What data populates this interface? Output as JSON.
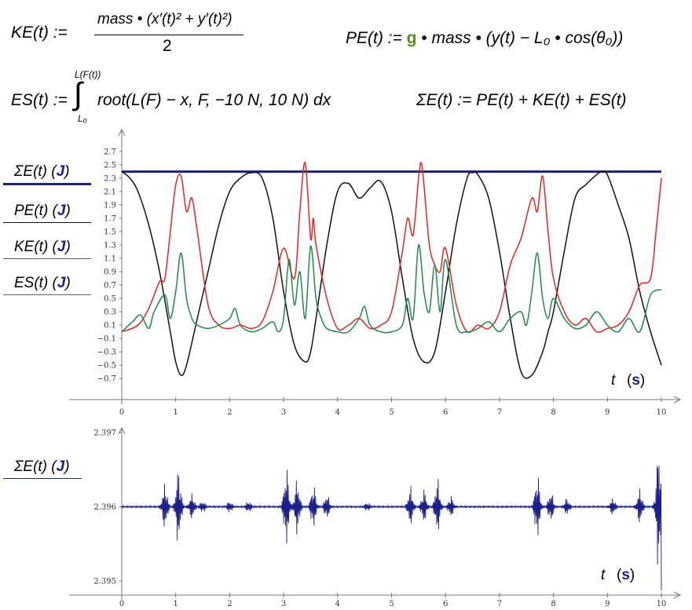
{
  "colors": {
    "total": "#1a1f8c",
    "pe": "#111111",
    "ke": "#ee2222",
    "es": "#1e8a4c",
    "g": "#5a8a1a",
    "unit": "#1a1f8c"
  },
  "equations": {
    "ke": {
      "lhs": "KE(t) :=",
      "numerator": "mass • (x′(t)² + y′(t)²)",
      "denominator": "2"
    },
    "pe": {
      "lhs": "PE(t) :=",
      "g": "g",
      "rhs": "• mass • (y(t) − L₀ • cos(θ₀))"
    },
    "es": {
      "lhs": "ES(t) :=",
      "upper": "L(F(t))",
      "lower": "L₀",
      "integrand": "root(L(F) − x, F, −10 N, 10 N) dx"
    },
    "sum": {
      "text": "ΣE(t) := PE(t) + KE(t) + ES(t)"
    }
  },
  "legend_top": [
    {
      "label": "ΣE(t)",
      "unit": "J",
      "color": "#1a1f8c"
    },
    {
      "label": "PE(t)",
      "unit": "J",
      "color": "#111111"
    },
    {
      "label": "KE(t)",
      "unit": "J",
      "color": "#ee2222"
    },
    {
      "label": "ES(t)",
      "unit": "J",
      "color": "#1e8a4c"
    }
  ],
  "legend_bottom": {
    "label": "ΣE(t)",
    "unit": "J",
    "color": "#1a1f8c"
  },
  "chart_data": [
    {
      "type": "line",
      "title": "",
      "xlabel": "t",
      "xunit": "s",
      "ylabel": "J",
      "xlim": [
        0,
        10
      ],
      "ylim": [
        -0.85,
        2.85
      ],
      "xticks": [
        0,
        1,
        2,
        3,
        4,
        5,
        6,
        7,
        8,
        9,
        10
      ],
      "yticks": [
        "2.7",
        "2.5",
        "2.3",
        "2.1",
        "1.9",
        "1.7",
        "1.5",
        "1.3",
        "1.1",
        "0.9",
        "0.7",
        "0.5",
        "0.3",
        "0.1",
        "−0.1",
        "−0.3",
        "−0.5",
        "−0.7"
      ],
      "series": [
        {
          "name": "ΣE(t) (J)",
          "color": "#1a1f8c",
          "x": [
            0,
            10
          ],
          "y": [
            2.396,
            2.396
          ]
        },
        {
          "name": "PE(t) (J)",
          "color": "#111111",
          "x": [
            0,
            0.15,
            0.3,
            0.5,
            0.7,
            0.9,
            1.0,
            1.1,
            1.2,
            1.4,
            1.6,
            1.8,
            2.0,
            2.2,
            2.4,
            2.6,
            2.8,
            3.0,
            3.2,
            3.4,
            3.5,
            3.6,
            3.8,
            4.0,
            4.2,
            4.4,
            4.6,
            4.8,
            5.0,
            5.2,
            5.4,
            5.6,
            5.8,
            6.0,
            6.2,
            6.4,
            6.5,
            6.6,
            6.8,
            7.0,
            7.2,
            7.4,
            7.6,
            7.8,
            7.9,
            8.0,
            8.2,
            8.4,
            8.6,
            8.8,
            8.9,
            9.0,
            9.2,
            9.4,
            9.6,
            9.8,
            10.0
          ],
          "y": [
            2.4,
            2.3,
            2.1,
            1.6,
            0.9,
            0.0,
            -0.45,
            -0.65,
            -0.5,
            0.2,
            0.9,
            1.6,
            2.1,
            2.3,
            2.38,
            2.3,
            1.7,
            0.6,
            -0.2,
            -0.45,
            -0.3,
            0.2,
            1.3,
            2.1,
            2.22,
            2.0,
            2.15,
            2.25,
            1.8,
            0.8,
            -0.1,
            -0.45,
            -0.3,
            0.6,
            1.6,
            2.3,
            2.38,
            2.35,
            2.0,
            1.2,
            0.2,
            -0.6,
            -0.65,
            -0.3,
            0.0,
            0.3,
            1.2,
            2.0,
            2.2,
            2.35,
            2.4,
            2.35,
            1.9,
            1.4,
            0.6,
            0.0,
            -0.5
          ]
        },
        {
          "name": "KE(t) (J)",
          "color": "#ee2222",
          "x": [
            0,
            0.3,
            0.5,
            0.7,
            0.8,
            0.9,
            1.0,
            1.1,
            1.2,
            1.3,
            1.4,
            1.6,
            1.8,
            2.0,
            2.2,
            2.4,
            2.6,
            2.8,
            3.0,
            3.2,
            3.3,
            3.4,
            3.5,
            3.55,
            3.6,
            3.8,
            4.0,
            4.2,
            4.4,
            4.6,
            4.8,
            5.0,
            5.2,
            5.3,
            5.4,
            5.5,
            5.55,
            5.6,
            5.7,
            5.8,
            5.9,
            6.0,
            6.2,
            6.4,
            6.6,
            6.8,
            7.0,
            7.2,
            7.4,
            7.6,
            7.7,
            7.8,
            7.9,
            8.0,
            8.2,
            8.4,
            8.6,
            8.8,
            9.0,
            9.2,
            9.4,
            9.6,
            9.8,
            9.9,
            10.0
          ],
          "y": [
            0.0,
            0.1,
            0.35,
            0.75,
            0.8,
            1.5,
            2.2,
            2.33,
            1.8,
            2.0,
            1.5,
            0.4,
            0.1,
            0.05,
            0.1,
            0.05,
            0.15,
            0.6,
            1.25,
            0.8,
            1.8,
            2.53,
            1.4,
            1.7,
            1.3,
            0.5,
            0.05,
            0.1,
            0.2,
            0.05,
            0.1,
            0.3,
            1.2,
            1.7,
            1.45,
            2.3,
            2.53,
            2.2,
            1.3,
            1.0,
            0.9,
            1.25,
            0.4,
            0.0,
            0.1,
            0.05,
            0.3,
            1.0,
            1.4,
            2.0,
            1.8,
            2.33,
            1.5,
            0.8,
            0.3,
            0.1,
            0.2,
            0.0,
            0.05,
            0.1,
            0.3,
            0.7,
            0.8,
            1.5,
            2.3
          ]
        },
        {
          "name": "ES(t) (J)",
          "color": "#1e8a4c",
          "x": [
            0,
            0.2,
            0.35,
            0.5,
            0.6,
            0.8,
            0.9,
            1.0,
            1.1,
            1.2,
            1.3,
            1.4,
            1.6,
            1.8,
            2.0,
            2.1,
            2.2,
            2.4,
            2.6,
            2.8,
            2.9,
            3.0,
            3.1,
            3.2,
            3.3,
            3.4,
            3.5,
            3.6,
            3.7,
            3.8,
            4.0,
            4.2,
            4.4,
            4.5,
            4.6,
            4.8,
            5.0,
            5.2,
            5.3,
            5.4,
            5.5,
            5.6,
            5.7,
            5.8,
            5.9,
            6.0,
            6.2,
            6.4,
            6.6,
            6.8,
            7.0,
            7.2,
            7.4,
            7.5,
            7.6,
            7.7,
            7.8,
            7.9,
            8.0,
            8.2,
            8.4,
            8.6,
            8.8,
            9.0,
            9.2,
            9.4,
            9.6,
            9.8,
            10.0
          ],
          "y": [
            0.0,
            0.15,
            0.25,
            0.05,
            0.3,
            0.55,
            0.2,
            0.6,
            1.18,
            0.5,
            0.2,
            0.1,
            0.05,
            0.1,
            0.2,
            0.35,
            0.1,
            0.0,
            0.05,
            0.15,
            0.0,
            0.2,
            1.08,
            0.4,
            0.9,
            0.2,
            1.28,
            0.5,
            0.2,
            0.05,
            0.0,
            0.0,
            0.2,
            0.38,
            0.1,
            0.0,
            0.0,
            0.1,
            0.5,
            0.2,
            1.3,
            0.6,
            0.3,
            1.0,
            0.3,
            1.08,
            0.1,
            0.0,
            0.05,
            0.15,
            0.0,
            0.2,
            0.3,
            0.1,
            0.6,
            1.18,
            0.5,
            0.2,
            0.5,
            0.2,
            0.05,
            0.1,
            0.3,
            0.1,
            0.0,
            0.2,
            0.0,
            0.55,
            0.63
          ]
        }
      ]
    },
    {
      "type": "line",
      "title": "",
      "xlabel": "t",
      "xunit": "s",
      "ylabel": "J",
      "xlim": [
        0,
        10
      ],
      "ylim": [
        2.3949,
        2.3971
      ],
      "xticks": [
        0,
        1,
        2,
        3,
        4,
        5,
        6,
        7,
        8,
        9,
        10
      ],
      "yticks": [
        "2.397",
        "2.396",
        "2.395"
      ],
      "baseline": 2.396,
      "series": [
        {
          "name": "ΣE(t) (J)",
          "color": "#1a1f8c",
          "bursts": [
            [
              0.8,
              0.00033
            ],
            [
              1.05,
              0.00055
            ],
            [
              1.3,
              0.00018
            ],
            [
              1.5,
              8e-05
            ],
            [
              2.0,
              8e-05
            ],
            [
              2.35,
              8e-05
            ],
            [
              3.05,
              0.00058
            ],
            [
              3.25,
              0.0004
            ],
            [
              3.55,
              0.00032
            ],
            [
              3.8,
              0.00018
            ],
            [
              4.55,
              6e-05
            ],
            [
              5.35,
              0.00028
            ],
            [
              5.6,
              0.00024
            ],
            [
              5.85,
              0.0004
            ],
            [
              6.1,
              0.00015
            ],
            [
              7.7,
              0.00048
            ],
            [
              7.95,
              0.00022
            ],
            [
              8.25,
              0.00012
            ],
            [
              9.1,
              0.00012
            ],
            [
              9.6,
              0.00025
            ],
            [
              9.95,
              0.0009
            ]
          ]
        }
      ]
    }
  ]
}
